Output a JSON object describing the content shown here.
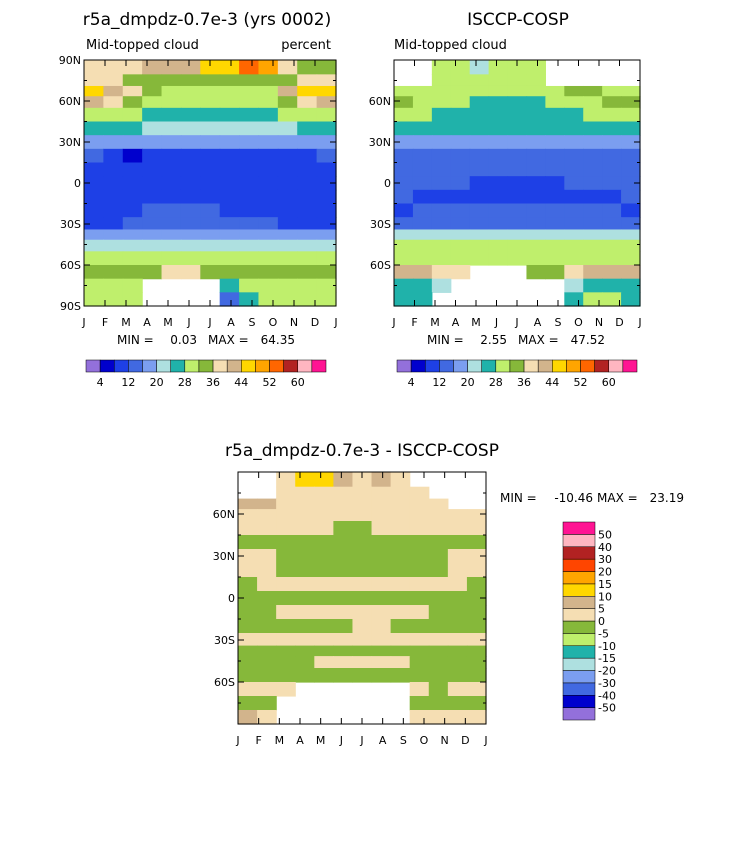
{
  "chart_data": [
    {
      "type": "heatmap",
      "title": "r5a_dmpdz-0.7e-3 (yrs 0002)",
      "subtitle_left": "Mid-topped cloud",
      "subtitle_right": "percent",
      "stats": {
        "min_label": "MIN =",
        "min": "0.03",
        "max_label": "MAX =",
        "max": "64.35"
      },
      "x_ticks": [
        "J",
        "F",
        "M",
        "A",
        "M",
        "J",
        "J",
        "A",
        "S",
        "O",
        "N",
        "D",
        "J"
      ],
      "y_ticks": [
        "90N",
        "60N",
        "30N",
        "0",
        "30S",
        "60S",
        "90S"
      ],
      "ylim": [
        -90,
        90
      ],
      "field": {
        "months": [
          "Jan",
          "Feb",
          "Mar",
          "Apr",
          "May",
          "Jun",
          "Jul",
          "Aug",
          "Sep",
          "Oct",
          "Nov",
          "Dec",
          "Jan"
        ],
        "lat": [
          84,
          75,
          67,
          60,
          50,
          40,
          30,
          20,
          10,
          0,
          -10,
          -20,
          -30,
          -38,
          -45,
          -55,
          -65,
          -75,
          -85
        ],
        "values": [
          [
            38,
            38,
            38,
            40,
            40,
            42,
            44,
            44,
            52,
            48,
            36,
            34,
            34
          ],
          [
            36,
            36,
            34,
            34,
            32,
            32,
            32,
            32,
            34,
            34,
            34,
            36,
            36
          ],
          [
            44,
            42,
            38,
            32,
            30,
            30,
            30,
            30,
            30,
            30,
            40,
            44,
            44
          ],
          [
            40,
            36,
            32,
            30,
            28,
            28,
            28,
            28,
            28,
            30,
            34,
            38,
            40
          ],
          [
            30,
            28,
            28,
            26,
            26,
            26,
            26,
            26,
            26,
            26,
            28,
            30,
            30
          ],
          [
            24,
            24,
            24,
            22,
            22,
            22,
            22,
            22,
            22,
            22,
            22,
            24,
            24
          ],
          [
            18,
            18,
            16,
            16,
            16,
            16,
            16,
            16,
            16,
            16,
            16,
            18,
            18
          ],
          [
            12,
            10,
            4,
            10,
            10,
            10,
            10,
            10,
            10,
            10,
            10,
            10,
            12
          ],
          [
            10,
            10,
            10,
            10,
            10,
            10,
            10,
            10,
            10,
            10,
            10,
            10,
            10
          ],
          [
            8,
            8,
            8,
            8,
            8,
            8,
            8,
            8,
            8,
            8,
            8,
            8,
            8
          ],
          [
            8,
            8,
            8,
            8,
            8,
            8,
            8,
            8,
            8,
            8,
            8,
            8,
            8
          ],
          [
            8,
            8,
            8,
            12,
            12,
            12,
            12,
            8,
            8,
            8,
            8,
            8,
            8
          ],
          [
            10,
            10,
            12,
            12,
            12,
            12,
            12,
            12,
            12,
            12,
            10,
            10,
            10
          ],
          [
            16,
            16,
            16,
            16,
            16,
            16,
            16,
            16,
            16,
            16,
            16,
            16,
            16
          ],
          [
            20,
            20,
            22,
            22,
            22,
            22,
            22,
            22,
            22,
            22,
            22,
            20,
            20
          ],
          [
            28,
            28,
            28,
            30,
            30,
            30,
            30,
            30,
            30,
            30,
            28,
            28,
            28
          ],
          [
            34,
            34,
            32,
            32,
            36,
            36,
            34,
            32,
            32,
            34,
            34,
            34,
            34
          ],
          [
            30,
            30,
            28,
            null,
            null,
            null,
            null,
            26,
            28,
            28,
            30,
            30,
            30
          ],
          [
            30,
            30,
            28,
            null,
            null,
            null,
            null,
            12,
            26,
            28,
            30,
            30,
            30
          ]
        ]
      }
    },
    {
      "type": "heatmap",
      "title": "ISCCP-COSP",
      "subtitle_left": "Mid-topped cloud",
      "stats": {
        "min_label": "MIN =",
        "min": "2.55",
        "max_label": "MAX =",
        "max": "47.52"
      },
      "x_ticks": [
        "J",
        "F",
        "M",
        "A",
        "M",
        "J",
        "J",
        "A",
        "S",
        "O",
        "N",
        "D",
        "J"
      ],
      "y_ticks": [
        "60N",
        "30N",
        "0",
        "30S",
        "60S"
      ],
      "ylim": [
        -90,
        90
      ],
      "field": {
        "months": [
          "Jan",
          "Feb",
          "Mar",
          "Apr",
          "May",
          "Jun",
          "Jul",
          "Aug",
          "Sep",
          "Oct",
          "Nov",
          "Dec",
          "Jan"
        ],
        "lat": [
          84,
          75,
          67,
          60,
          50,
          40,
          30,
          20,
          10,
          0,
          -10,
          -20,
          -30,
          -38,
          -45,
          -55,
          -65,
          -75,
          -85
        ],
        "values": [
          [
            null,
            null,
            28,
            30,
            20,
            30,
            30,
            30,
            null,
            null,
            null,
            null,
            null
          ],
          [
            null,
            null,
            28,
            28,
            28,
            28,
            28,
            28,
            null,
            null,
            null,
            null,
            null
          ],
          [
            30,
            30,
            28,
            28,
            28,
            28,
            28,
            28,
            28,
            32,
            32,
            30,
            30
          ],
          [
            34,
            30,
            28,
            28,
            26,
            26,
            26,
            26,
            28,
            28,
            30,
            34,
            34
          ],
          [
            28,
            28,
            26,
            26,
            26,
            26,
            26,
            26,
            26,
            26,
            28,
            28,
            28
          ],
          [
            26,
            24,
            24,
            24,
            24,
            24,
            24,
            24,
            24,
            24,
            24,
            24,
            26
          ],
          [
            18,
            18,
            18,
            18,
            18,
            18,
            18,
            18,
            18,
            18,
            18,
            18,
            18
          ],
          [
            14,
            14,
            14,
            14,
            14,
            14,
            14,
            14,
            14,
            14,
            14,
            14,
            14
          ],
          [
            12,
            12,
            12,
            12,
            12,
            12,
            12,
            12,
            12,
            12,
            12,
            12,
            12
          ],
          [
            12,
            12,
            12,
            12,
            10,
            10,
            10,
            10,
            10,
            12,
            12,
            12,
            12
          ],
          [
            12,
            10,
            10,
            10,
            10,
            10,
            10,
            10,
            10,
            10,
            10,
            10,
            12
          ],
          [
            10,
            12,
            12,
            12,
            12,
            12,
            12,
            12,
            12,
            12,
            12,
            12,
            10
          ],
          [
            12,
            12,
            12,
            12,
            14,
            14,
            14,
            14,
            14,
            12,
            12,
            12,
            12
          ],
          [
            20,
            20,
            20,
            20,
            22,
            22,
            22,
            22,
            20,
            20,
            20,
            20,
            20
          ],
          [
            28,
            28,
            28,
            28,
            28,
            28,
            28,
            28,
            28,
            28,
            28,
            28,
            28
          ],
          [
            30,
            30,
            30,
            30,
            30,
            30,
            30,
            30,
            30,
            30,
            30,
            30,
            30
          ],
          [
            40,
            40,
            36,
            36,
            null,
            null,
            null,
            34,
            32,
            36,
            40,
            40,
            40
          ],
          [
            24,
            24,
            20,
            null,
            null,
            null,
            null,
            null,
            null,
            22,
            26,
            26,
            24
          ],
          [
            26,
            24,
            null,
            null,
            null,
            null,
            null,
            null,
            null,
            26,
            30,
            30,
            26
          ]
        ]
      }
    },
    {
      "type": "heatmap",
      "title": "r5a_dmpdz-0.7e-3 - ISCCP-COSP",
      "stats": {
        "min_label": "MIN =",
        "min": "-10.46",
        "max_label": "MAX =",
        "max": "23.19"
      },
      "x_ticks": [
        "J",
        "F",
        "M",
        "A",
        "M",
        "J",
        "J",
        "A",
        "S",
        "O",
        "N",
        "D",
        "J"
      ],
      "y_ticks": [
        "60N",
        "30N",
        "0",
        "30S",
        "60S"
      ],
      "ylim": [
        -90,
        90
      ],
      "field": {
        "months": [
          "Jan",
          "Feb",
          "Mar",
          "Apr",
          "May",
          "Jun",
          "Jul",
          "Aug",
          "Sep",
          "Oct",
          "Nov",
          "Dec",
          "Jan"
        ],
        "lat": [
          84,
          75,
          67,
          60,
          50,
          40,
          30,
          20,
          10,
          0,
          -10,
          -20,
          -30,
          -38,
          -45,
          -55,
          -65,
          -75,
          -85
        ],
        "values": [
          [
            null,
            null,
            0,
            12,
            14,
            8,
            2,
            6,
            2,
            null,
            null,
            null,
            null
          ],
          [
            null,
            null,
            2,
            2,
            2,
            2,
            2,
            2,
            2,
            2,
            null,
            null,
            null
          ],
          [
            8,
            8,
            2,
            2,
            2,
            2,
            2,
            2,
            2,
            0,
            0,
            null,
            null
          ],
          [
            2,
            2,
            2,
            2,
            2,
            2,
            2,
            2,
            2,
            0,
            2,
            2,
            2
          ],
          [
            0,
            0,
            0,
            0,
            0,
            -2,
            -2,
            0,
            0,
            0,
            0,
            0,
            0
          ],
          [
            -2,
            -2,
            -2,
            -2,
            -2,
            -2,
            -2,
            -2,
            -2,
            -2,
            -2,
            -2,
            -2
          ],
          [
            0,
            0,
            -2,
            -2,
            -2,
            -2,
            -2,
            -2,
            -2,
            -2,
            -2,
            0,
            0
          ],
          [
            0,
            0,
            -2,
            -2,
            -2,
            -2,
            -2,
            -2,
            -2,
            -2,
            -2,
            0,
            0
          ],
          [
            -2,
            0,
            0,
            0,
            0,
            0,
            0,
            0,
            0,
            0,
            0,
            0,
            -2
          ],
          [
            -2,
            -2,
            -2,
            -2,
            -2,
            -2,
            -2,
            -2,
            -2,
            -2,
            -2,
            -2,
            -2
          ],
          [
            -2,
            -2,
            0,
            0,
            0,
            0,
            0,
            0,
            0,
            0,
            -2,
            -2,
            -2
          ],
          [
            -2,
            -2,
            -2,
            -2,
            -2,
            -2,
            2,
            2,
            -2,
            -2,
            -2,
            -2,
            -2
          ],
          [
            0,
            0,
            0,
            0,
            0,
            0,
            0,
            0,
            0,
            0,
            0,
            0,
            0
          ],
          [
            -2,
            -2,
            -2,
            -2,
            -2,
            -2,
            -2,
            -2,
            -2,
            -2,
            -2,
            -2,
            -2
          ],
          [
            -2,
            -2,
            -2,
            -2,
            2,
            2,
            2,
            2,
            2,
            -2,
            -2,
            -2,
            -2
          ],
          [
            -2,
            -2,
            -2,
            -2,
            -2,
            -2,
            -2,
            -2,
            -2,
            -2,
            -2,
            -2,
            -2
          ],
          [
            2,
            2,
            0,
            null,
            null,
            null,
            null,
            null,
            null,
            0,
            -2,
            2,
            2
          ],
          [
            -2,
            -2,
            null,
            null,
            null,
            null,
            null,
            null,
            null,
            -2,
            -2,
            -2,
            -2
          ],
          [
            8,
            2,
            null,
            null,
            null,
            null,
            null,
            null,
            null,
            2,
            4,
            4,
            4
          ]
        ]
      }
    }
  ],
  "legend_top": {
    "levels": [
      4,
      8,
      12,
      16,
      20,
      24,
      28,
      32,
      36,
      40,
      44,
      48,
      52,
      56,
      60
    ],
    "labels": [
      "4",
      "12",
      "20",
      "28",
      "36",
      "44",
      "52",
      "60"
    ],
    "colors": [
      "#9370db",
      "#0000cd",
      "#1e40e6",
      "#4169e1",
      "#7b9ef0",
      "#aee0e0",
      "#20b2aa",
      "#bfef6c",
      "#86b83a",
      "#f5deb3",
      "#d2b48c",
      "#ffd700",
      "#ffa500",
      "#ff6600",
      "#b22222",
      "#ffb6c1",
      "#ff1493"
    ]
  },
  "legend_diff": {
    "levels": [
      -50,
      -40,
      -30,
      -20,
      -15,
      -10,
      -5,
      0,
      5,
      10,
      15,
      20,
      30,
      40,
      50
    ],
    "labels": [
      "-50",
      "-40",
      "-30",
      "-20",
      "-15",
      "-10",
      "-5",
      "0",
      "5",
      "10",
      "15",
      "20",
      "30",
      "40",
      "50"
    ],
    "colors": [
      "#9370db",
      "#0000cd",
      "#4169e1",
      "#7b9ef0",
      "#aee0e0",
      "#20b2aa",
      "#bfef6c",
      "#86b83a",
      "#f5deb3",
      "#d2b48c",
      "#ffd700",
      "#ffa500",
      "#ff4500",
      "#b22222",
      "#ffb6c1",
      "#ff1493"
    ]
  }
}
